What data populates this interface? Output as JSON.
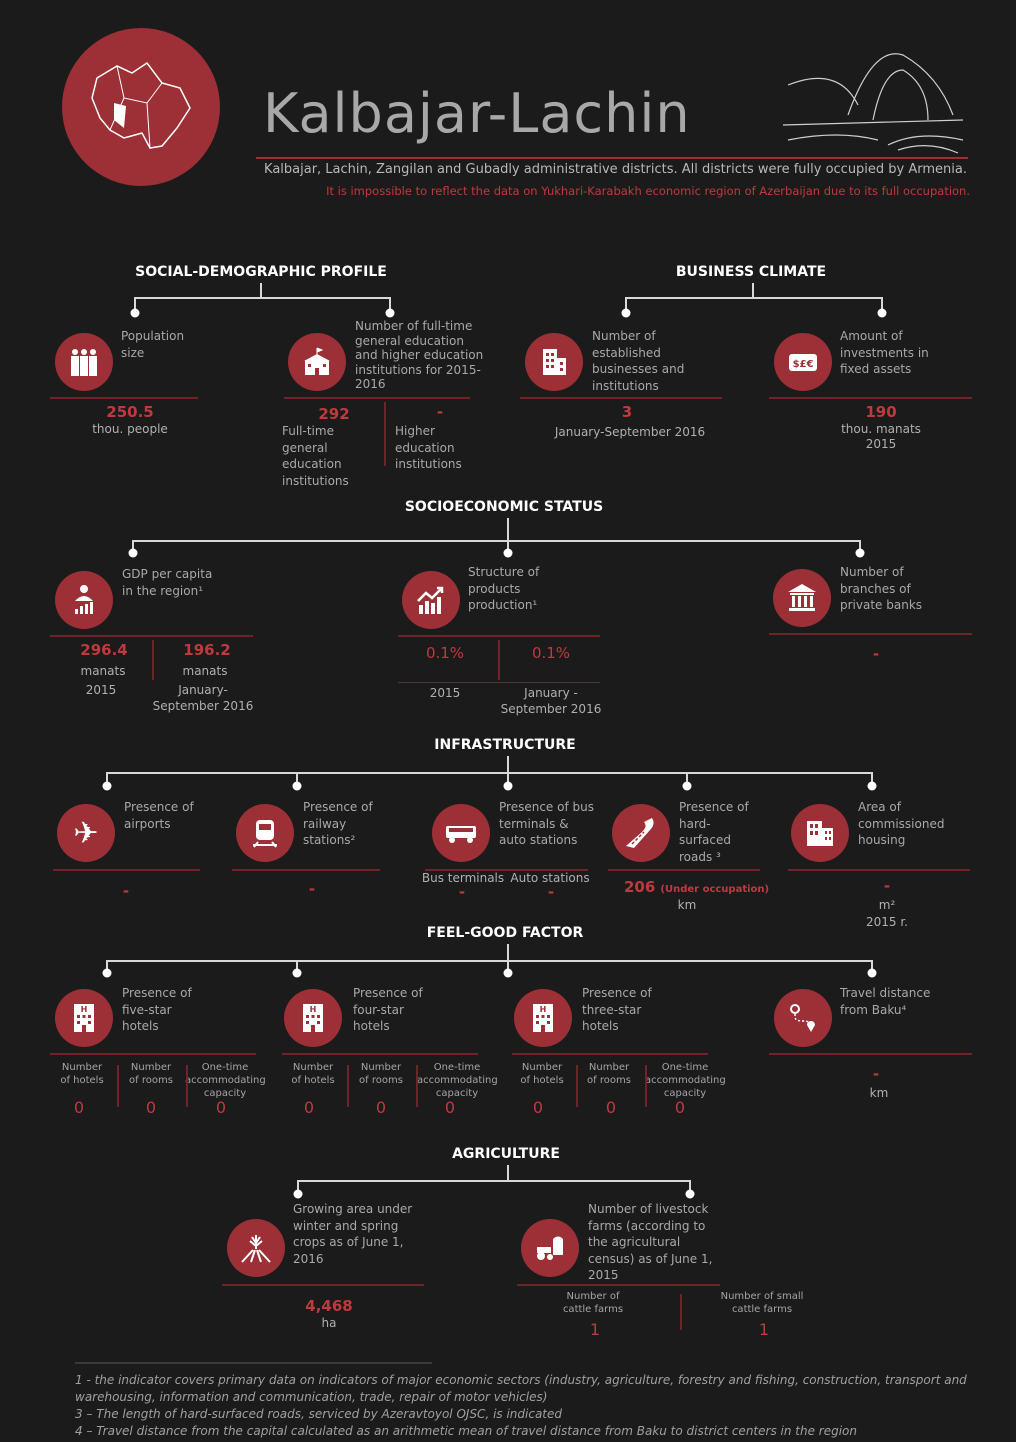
{
  "header": {
    "title": "Kalbajar-Lachin",
    "subtitle": "Kalbajar, Lachin, Zangilan and Gubadly administrative districts. All districts  were fully occupied by Armenia.",
    "note": "It is impossible to reflect the data on Yukhari-Karabakh economic region of Azerbaijan due to its full occupation."
  },
  "colors": {
    "background": "#1c1b1b",
    "accent": "#9c3036",
    "value": "#c0393f"
  },
  "social": {
    "title": "SOCIAL-DEMOGRAPHIC PROFILE",
    "population": {
      "label": "Population size",
      "value": "250.5",
      "unit": "thou. people"
    },
    "education": {
      "label": "Number of full-time general education and higher education institutions for 2015-2016",
      "general_value": "292",
      "general_label": "Full-time general education institutions",
      "higher_value": "-",
      "higher_label": "Higher education institutions"
    }
  },
  "business": {
    "title": "BUSINESS CLIMATE",
    "businesses": {
      "label": "Number of established businesses and institutions",
      "value": "3",
      "period": "January-September 2016"
    },
    "investments": {
      "label": "Amount of investments in fixed assets",
      "value": "190",
      "unit": "thou. manats",
      "period": "2015"
    }
  },
  "socio": {
    "title": "SOCIOECONOMIC STATUS",
    "gdp": {
      "label": "GDP per capita in the region¹",
      "v1": "296.4",
      "u1": "manats",
      "p1": "2015",
      "v2": "196.2",
      "u2": "manats",
      "p2": "January-September 2016"
    },
    "structure": {
      "label": "Structure of products production¹",
      "v1": "0.1%",
      "p1": "2015",
      "v2": "0.1%",
      "p2": "January - September 2016"
    },
    "banks": {
      "label": "Number of branches of private banks",
      "value": "-"
    }
  },
  "infra": {
    "title": "INFRASTRUCTURE",
    "airports": {
      "label": "Presence of airports",
      "value": "-"
    },
    "railway": {
      "label": "Presence of railway stations²",
      "value": "-"
    },
    "bus": {
      "label": "Presence of bus terminals & auto stations",
      "c1": "Bus terminals",
      "v1": "-",
      "c2": "Auto stations",
      "v2": "-"
    },
    "roads": {
      "label": "Presence of hard-surfaced roads ³",
      "value": "206",
      "note": "(Under occupation)",
      "unit": "km"
    },
    "housing": {
      "label": "Area of commissioned housing",
      "value": "-",
      "unit": "m²",
      "period": "2015 r."
    }
  },
  "feel": {
    "title": "FEEL-GOOD FACTOR",
    "hotels": [
      {
        "label": "Presence of five-star hotels"
      },
      {
        "label": "Presence of four-star hotels"
      },
      {
        "label": "Presence of three-star hotels"
      }
    ],
    "cols": {
      "hotels": "Number of hotels",
      "rooms": "Number of rooms",
      "capacity": "One-time accommodating capacity"
    },
    "zero": "0",
    "travel": {
      "label": "Travel distance from Baku⁴",
      "value": "-",
      "unit": "km"
    }
  },
  "agri": {
    "title": "AGRICULTURE",
    "crops": {
      "label": "Growing area under winter and spring crops as of June 1, 2016",
      "value": "4,468",
      "unit": "ha"
    },
    "livestock": {
      "label": "Number of livestock farms (according to the agricultural census) as of June 1, 2015",
      "c1": "Number of cattle farms",
      "v1": "1",
      "c2": "Number of small cattle farms",
      "v2": "1"
    }
  },
  "footnotes": [
    "1 - the indicator covers primary data on indicators of major economic sectors (industry, agriculture, forestry and fishing, construction, transport and warehousing, information and communication, trade, repair of  motor vehicles)",
    "3 – The length of hard-surfaced roads, serviced by Azeravtoyol OJSC, is indicated",
    "4 – Travel distance from the capital calculated as an arithmetic mean of travel distance from Baku to district centers in the region"
  ]
}
